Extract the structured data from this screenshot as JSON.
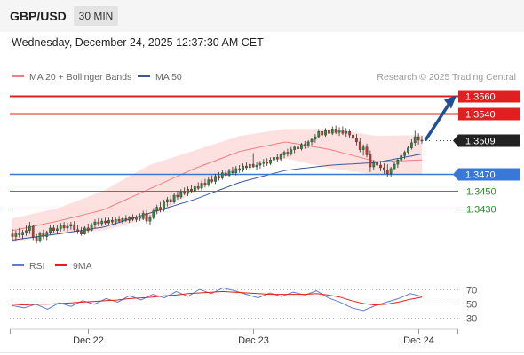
{
  "header": {
    "symbol": "GBP/USD",
    "timeframe": "30 MIN"
  },
  "datetime": "Wednesday, December 24, 2025 12:37:30 AM CET",
  "legend": {
    "ma20": "MA 20 + Bollinger Bands",
    "ma50": "MA 50",
    "ma20_color": "#f08080",
    "ma50_color": "#3a5a9a"
  },
  "credit": "Research © 2025 Trading Central",
  "chart_data": [
    {
      "type": "candlestick",
      "title": "GBP/USD",
      "ylim": [
        1.3378,
        1.3577
      ],
      "x_ticks": [
        {
          "label": "Dec 22",
          "index": 22
        },
        {
          "label": "Dec 23",
          "index": 70
        },
        {
          "label": "Dec 24",
          "index": 118
        }
      ],
      "candle_count": 120,
      "candles": [
        {
          "o": 1.34,
          "h": 1.3406,
          "l": 1.3393,
          "c": 1.3397
        },
        {
          "o": 1.3397,
          "h": 1.3404,
          "l": 1.3392,
          "c": 1.3401
        },
        {
          "o": 1.3401,
          "h": 1.3407,
          "l": 1.3396,
          "c": 1.3399
        },
        {
          "o": 1.3399,
          "h": 1.3405,
          "l": 1.3394,
          "c": 1.3402
        },
        {
          "o": 1.3402,
          "h": 1.341,
          "l": 1.3398,
          "c": 1.3404
        },
        {
          "o": 1.3404,
          "h": 1.3414,
          "l": 1.34,
          "c": 1.3409
        },
        {
          "o": 1.3409,
          "h": 1.3411,
          "l": 1.3393,
          "c": 1.3396
        },
        {
          "o": 1.3396,
          "h": 1.34,
          "l": 1.3389,
          "c": 1.3392
        },
        {
          "o": 1.3392,
          "h": 1.3403,
          "l": 1.339,
          "c": 1.3401
        },
        {
          "o": 1.3401,
          "h": 1.3405,
          "l": 1.3394,
          "c": 1.3397
        },
        {
          "o": 1.3397,
          "h": 1.3404,
          "l": 1.3393,
          "c": 1.3402
        },
        {
          "o": 1.3402,
          "h": 1.341,
          "l": 1.3399,
          "c": 1.3407
        },
        {
          "o": 1.3407,
          "h": 1.3411,
          "l": 1.3401,
          "c": 1.3404
        },
        {
          "o": 1.3404,
          "h": 1.341,
          "l": 1.34,
          "c": 1.3406
        },
        {
          "o": 1.3406,
          "h": 1.3413,
          "l": 1.3403,
          "c": 1.341
        },
        {
          "o": 1.341,
          "h": 1.3414,
          "l": 1.3404,
          "c": 1.3407
        },
        {
          "o": 1.3407,
          "h": 1.3413,
          "l": 1.3403,
          "c": 1.3409
        },
        {
          "o": 1.3409,
          "h": 1.3414,
          "l": 1.3405,
          "c": 1.3411
        },
        {
          "o": 1.3411,
          "h": 1.3415,
          "l": 1.3403,
          "c": 1.3405
        },
        {
          "o": 1.3405,
          "h": 1.3411,
          "l": 1.34,
          "c": 1.3403
        },
        {
          "o": 1.3403,
          "h": 1.3408,
          "l": 1.3398,
          "c": 1.34
        },
        {
          "o": 1.34,
          "h": 1.3409,
          "l": 1.3399,
          "c": 1.3407
        },
        {
          "o": 1.3407,
          "h": 1.3412,
          "l": 1.3402,
          "c": 1.3404
        },
        {
          "o": 1.3404,
          "h": 1.3413,
          "l": 1.3403,
          "c": 1.3411
        },
        {
          "o": 1.3411,
          "h": 1.3417,
          "l": 1.3407,
          "c": 1.3414
        },
        {
          "o": 1.3414,
          "h": 1.3418,
          "l": 1.3409,
          "c": 1.3412
        },
        {
          "o": 1.3412,
          "h": 1.3418,
          "l": 1.3409,
          "c": 1.3415
        },
        {
          "o": 1.3415,
          "h": 1.3419,
          "l": 1.3411,
          "c": 1.3413
        },
        {
          "o": 1.3413,
          "h": 1.3419,
          "l": 1.341,
          "c": 1.3416
        },
        {
          "o": 1.3416,
          "h": 1.342,
          "l": 1.3412,
          "c": 1.3414
        },
        {
          "o": 1.3414,
          "h": 1.3419,
          "l": 1.341,
          "c": 1.3417
        },
        {
          "o": 1.3417,
          "h": 1.3421,
          "l": 1.3413,
          "c": 1.3415
        },
        {
          "o": 1.3415,
          "h": 1.342,
          "l": 1.3412,
          "c": 1.3418
        },
        {
          "o": 1.3418,
          "h": 1.3422,
          "l": 1.3414,
          "c": 1.3416
        },
        {
          "o": 1.3416,
          "h": 1.3421,
          "l": 1.3413,
          "c": 1.3419
        },
        {
          "o": 1.3419,
          "h": 1.3423,
          "l": 1.3415,
          "c": 1.3417
        },
        {
          "o": 1.3417,
          "h": 1.3422,
          "l": 1.3414,
          "c": 1.342
        },
        {
          "o": 1.342,
          "h": 1.3424,
          "l": 1.3415,
          "c": 1.3418
        },
        {
          "o": 1.3418,
          "h": 1.3427,
          "l": 1.3416,
          "c": 1.3424
        },
        {
          "o": 1.3424,
          "h": 1.3428,
          "l": 1.3412,
          "c": 1.3415
        },
        {
          "o": 1.3415,
          "h": 1.3422,
          "l": 1.3411,
          "c": 1.3419
        },
        {
          "o": 1.3419,
          "h": 1.343,
          "l": 1.3417,
          "c": 1.3427
        },
        {
          "o": 1.3427,
          "h": 1.3434,
          "l": 1.3423,
          "c": 1.3431
        },
        {
          "o": 1.3431,
          "h": 1.3437,
          "l": 1.3425,
          "c": 1.3428
        },
        {
          "o": 1.3428,
          "h": 1.344,
          "l": 1.3426,
          "c": 1.3437
        },
        {
          "o": 1.3437,
          "h": 1.3443,
          "l": 1.3432,
          "c": 1.344
        },
        {
          "o": 1.344,
          "h": 1.3445,
          "l": 1.3434,
          "c": 1.3437
        },
        {
          "o": 1.3437,
          "h": 1.3448,
          "l": 1.3435,
          "c": 1.3445
        },
        {
          "o": 1.3445,
          "h": 1.345,
          "l": 1.344,
          "c": 1.3443
        },
        {
          "o": 1.3443,
          "h": 1.3452,
          "l": 1.3441,
          "c": 1.3449
        },
        {
          "o": 1.3449,
          "h": 1.3454,
          "l": 1.3445,
          "c": 1.3447
        },
        {
          "o": 1.3447,
          "h": 1.3455,
          "l": 1.3444,
          "c": 1.3452
        },
        {
          "o": 1.3452,
          "h": 1.3457,
          "l": 1.3448,
          "c": 1.345
        },
        {
          "o": 1.345,
          "h": 1.3458,
          "l": 1.3447,
          "c": 1.3455
        },
        {
          "o": 1.3455,
          "h": 1.346,
          "l": 1.3451,
          "c": 1.3453
        },
        {
          "o": 1.3453,
          "h": 1.3462,
          "l": 1.345,
          "c": 1.3459
        },
        {
          "o": 1.3459,
          "h": 1.3464,
          "l": 1.3454,
          "c": 1.3457
        },
        {
          "o": 1.3457,
          "h": 1.3466,
          "l": 1.3455,
          "c": 1.3463
        },
        {
          "o": 1.3463,
          "h": 1.3468,
          "l": 1.3459,
          "c": 1.3461
        },
        {
          "o": 1.3461,
          "h": 1.347,
          "l": 1.3458,
          "c": 1.3467
        },
        {
          "o": 1.3467,
          "h": 1.3472,
          "l": 1.3462,
          "c": 1.3465
        },
        {
          "o": 1.3465,
          "h": 1.3474,
          "l": 1.3463,
          "c": 1.3471
        },
        {
          "o": 1.3471,
          "h": 1.3475,
          "l": 1.3466,
          "c": 1.3468
        },
        {
          "o": 1.3468,
          "h": 1.3476,
          "l": 1.3466,
          "c": 1.3473
        },
        {
          "o": 1.3473,
          "h": 1.3478,
          "l": 1.3469,
          "c": 1.3471
        },
        {
          "o": 1.3471,
          "h": 1.3479,
          "l": 1.3468,
          "c": 1.3476
        },
        {
          "o": 1.3476,
          "h": 1.348,
          "l": 1.3471,
          "c": 1.3474
        },
        {
          "o": 1.3474,
          "h": 1.3482,
          "l": 1.3472,
          "c": 1.3479
        },
        {
          "o": 1.3479,
          "h": 1.3483,
          "l": 1.3474,
          "c": 1.3477
        },
        {
          "o": 1.3477,
          "h": 1.3484,
          "l": 1.3475,
          "c": 1.3481
        },
        {
          "o": 1.3481,
          "h": 1.3494,
          "l": 1.3477,
          "c": 1.3478
        },
        {
          "o": 1.3478,
          "h": 1.3484,
          "l": 1.3474,
          "c": 1.348
        },
        {
          "o": 1.348,
          "h": 1.3485,
          "l": 1.3476,
          "c": 1.3482
        },
        {
          "o": 1.3482,
          "h": 1.3487,
          "l": 1.3478,
          "c": 1.3484
        },
        {
          "o": 1.3484,
          "h": 1.3488,
          "l": 1.3479,
          "c": 1.3482
        },
        {
          "o": 1.3482,
          "h": 1.3489,
          "l": 1.348,
          "c": 1.3486
        },
        {
          "o": 1.3486,
          "h": 1.3491,
          "l": 1.3482,
          "c": 1.3489
        },
        {
          "o": 1.3489,
          "h": 1.3493,
          "l": 1.3484,
          "c": 1.3487
        },
        {
          "o": 1.3487,
          "h": 1.3494,
          "l": 1.3485,
          "c": 1.3492
        },
        {
          "o": 1.3492,
          "h": 1.3497,
          "l": 1.3488,
          "c": 1.3495
        },
        {
          "o": 1.3495,
          "h": 1.3499,
          "l": 1.349,
          "c": 1.3493
        },
        {
          "o": 1.3493,
          "h": 1.3501,
          "l": 1.3491,
          "c": 1.3498
        },
        {
          "o": 1.3498,
          "h": 1.3503,
          "l": 1.3494,
          "c": 1.3501
        },
        {
          "o": 1.3501,
          "h": 1.3505,
          "l": 1.3496,
          "c": 1.3499
        },
        {
          "o": 1.3499,
          "h": 1.3506,
          "l": 1.3497,
          "c": 1.3504
        },
        {
          "o": 1.3504,
          "h": 1.3508,
          "l": 1.3499,
          "c": 1.3502
        },
        {
          "o": 1.3502,
          "h": 1.3509,
          "l": 1.35,
          "c": 1.3507
        },
        {
          "o": 1.3507,
          "h": 1.3512,
          "l": 1.3503,
          "c": 1.351
        },
        {
          "o": 1.351,
          "h": 1.3516,
          "l": 1.3506,
          "c": 1.3513
        },
        {
          "o": 1.3513,
          "h": 1.3522,
          "l": 1.3511,
          "c": 1.3519
        },
        {
          "o": 1.3519,
          "h": 1.3524,
          "l": 1.3512,
          "c": 1.3515
        },
        {
          "o": 1.3515,
          "h": 1.3523,
          "l": 1.3513,
          "c": 1.352
        },
        {
          "o": 1.352,
          "h": 1.3526,
          "l": 1.3514,
          "c": 1.3517
        },
        {
          "o": 1.3517,
          "h": 1.3525,
          "l": 1.3515,
          "c": 1.3522
        },
        {
          "o": 1.3522,
          "h": 1.3526,
          "l": 1.3516,
          "c": 1.3518
        },
        {
          "o": 1.3518,
          "h": 1.3524,
          "l": 1.3514,
          "c": 1.3521
        },
        {
          "o": 1.3521,
          "h": 1.3525,
          "l": 1.3515,
          "c": 1.3517
        },
        {
          "o": 1.3517,
          "h": 1.3523,
          "l": 1.3513,
          "c": 1.3519
        },
        {
          "o": 1.3519,
          "h": 1.3522,
          "l": 1.3512,
          "c": 1.3515
        },
        {
          "o": 1.3515,
          "h": 1.352,
          "l": 1.3508,
          "c": 1.3511
        },
        {
          "o": 1.3511,
          "h": 1.3516,
          "l": 1.3503,
          "c": 1.3507
        },
        {
          "o": 1.3507,
          "h": 1.3511,
          "l": 1.3495,
          "c": 1.3498
        },
        {
          "o": 1.3498,
          "h": 1.3504,
          "l": 1.3491,
          "c": 1.3501
        },
        {
          "o": 1.3501,
          "h": 1.3505,
          "l": 1.3489,
          "c": 1.3492
        },
        {
          "o": 1.3492,
          "h": 1.3497,
          "l": 1.3472,
          "c": 1.3478
        },
        {
          "o": 1.3478,
          "h": 1.3486,
          "l": 1.3474,
          "c": 1.3483
        },
        {
          "o": 1.3483,
          "h": 1.3488,
          "l": 1.3476,
          "c": 1.348
        },
        {
          "o": 1.348,
          "h": 1.3485,
          "l": 1.3473,
          "c": 1.3477
        },
        {
          "o": 1.3477,
          "h": 1.3482,
          "l": 1.347,
          "c": 1.3474
        },
        {
          "o": 1.3474,
          "h": 1.3481,
          "l": 1.3466,
          "c": 1.347
        },
        {
          "o": 1.347,
          "h": 1.3478,
          "l": 1.3466,
          "c": 1.3476
        },
        {
          "o": 1.3476,
          "h": 1.3484,
          "l": 1.3474,
          "c": 1.3481
        },
        {
          "o": 1.3481,
          "h": 1.3488,
          "l": 1.3477,
          "c": 1.3486
        },
        {
          "o": 1.3486,
          "h": 1.3494,
          "l": 1.3484,
          "c": 1.3491
        },
        {
          "o": 1.3491,
          "h": 1.3497,
          "l": 1.3487,
          "c": 1.3495
        },
        {
          "o": 1.3495,
          "h": 1.3502,
          "l": 1.3492,
          "c": 1.35
        },
        {
          "o": 1.35,
          "h": 1.351,
          "l": 1.3498,
          "c": 1.3506
        },
        {
          "o": 1.3506,
          "h": 1.352,
          "l": 1.3502,
          "c": 1.3513
        },
        {
          "o": 1.3513,
          "h": 1.3517,
          "l": 1.3504,
          "c": 1.3509
        },
        {
          "o": 1.3509,
          "h": 1.3514,
          "l": 1.3505,
          "c": 1.3509
        }
      ],
      "ma20": [
        1.3404,
        1.3415,
        1.3428,
        1.3452,
        1.3476,
        1.3496,
        1.3507,
        1.3498,
        1.3484,
        1.3486
      ],
      "ma50": [
        1.3393,
        1.34,
        1.3408,
        1.3424,
        1.344,
        1.346,
        1.3474,
        1.348,
        1.3483,
        1.3493
      ],
      "bb_upper": [
        1.3418,
        1.343,
        1.345,
        1.348,
        1.3497,
        1.3514,
        1.3522,
        1.3522,
        1.3514,
        1.3515
      ],
      "bb_lower": [
        1.339,
        1.3401,
        1.3404,
        1.3418,
        1.3449,
        1.3478,
        1.3488,
        1.3476,
        1.3469,
        1.3469
      ],
      "levels": [
        {
          "value": "1.3560",
          "kind": "resistance",
          "color": "#e02020"
        },
        {
          "value": "1.3540",
          "kind": "resistance",
          "color": "#e02020"
        },
        {
          "value": "1.3509",
          "kind": "last",
          "color": "#222222"
        },
        {
          "value": "1.3470",
          "kind": "pivot",
          "color": "#3a78d8"
        },
        {
          "value": "1.3450",
          "kind": "support",
          "color": "#3a9a3a"
        },
        {
          "value": "1.3430",
          "kind": "support",
          "color": "#3a9a3a"
        }
      ],
      "forecast_arrow": {
        "from": 1.3509,
        "to": 1.356,
        "color": "#1f4f99"
      }
    },
    {
      "type": "line",
      "ylim": [
        20,
        80
      ],
      "y_ticks": [
        "70",
        "50",
        "30"
      ],
      "series": [
        {
          "name": "RSI",
          "color": "#5b7fd0",
          "values": [
            47,
            44,
            49,
            42,
            51,
            46,
            54,
            49,
            57,
            52,
            61,
            55,
            63,
            58,
            67,
            60,
            70,
            64,
            72,
            68,
            63,
            58,
            65,
            60,
            66,
            62,
            68,
            58,
            52,
            44,
            40,
            47,
            52,
            57,
            64,
            60
          ]
        },
        {
          "name": "9MA",
          "color": "#e02020",
          "values": [
            49,
            48,
            49,
            49,
            50,
            51,
            52,
            53,
            54,
            55,
            57,
            58,
            59,
            61,
            62,
            64,
            65,
            66,
            67,
            66,
            65,
            64,
            63,
            63,
            63,
            63,
            64,
            62,
            59,
            54,
            50,
            48,
            49,
            52,
            56,
            59
          ]
        }
      ]
    }
  ]
}
